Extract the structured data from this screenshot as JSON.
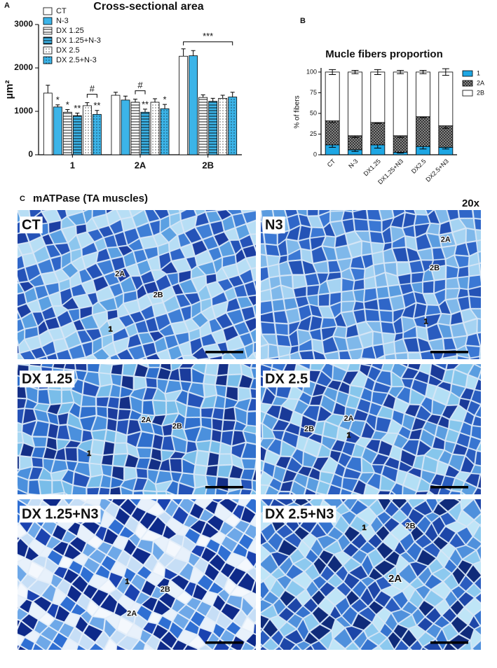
{
  "chart_data": [
    {
      "type": "bar",
      "panel_label": "A",
      "title": "Cross-sectional area",
      "ylabel": "µm²",
      "categories": [
        "1",
        "2A",
        "2B"
      ],
      "series": [
        {
          "name": "CT",
          "color": "#ffffff",
          "pattern": "none",
          "values": [
            1420,
            1370,
            2270
          ],
          "errors": [
            180,
            70,
            170
          ]
        },
        {
          "name": "N-3",
          "color": "#3cb4e8",
          "pattern": "none",
          "values": [
            1100,
            1260,
            2280
          ],
          "errors": [
            50,
            90,
            120
          ]
        },
        {
          "name": "DX 1.25",
          "color": "#ffffff",
          "pattern": "lines",
          "values": [
            980,
            1210,
            1320
          ],
          "errors": [
            60,
            70,
            60
          ]
        },
        {
          "name": "DX 1.25+N-3",
          "color": "#3cb4e8",
          "pattern": "lines",
          "values": [
            900,
            980,
            1230
          ],
          "errors": [
            60,
            70,
            70
          ]
        },
        {
          "name": "DX 2.5",
          "color": "#ffffff",
          "pattern": "dots",
          "values": [
            1130,
            1210,
            1300
          ],
          "errors": [
            70,
            80,
            70
          ]
        },
        {
          "name": "DX 2.5+N-3",
          "color": "#3cb4e8",
          "pattern": "dots",
          "values": [
            930,
            1060,
            1330
          ],
          "errors": [
            90,
            100,
            110
          ]
        }
      ],
      "ylim": [
        0,
        3000
      ],
      "yticks": [
        0,
        1000,
        2000,
        3000
      ],
      "legend": "top-left",
      "annotations": [
        {
          "text": "*",
          "category": "1",
          "series": [
            "N-3"
          ]
        },
        {
          "text": "*",
          "category": "1",
          "series": [
            "DX 1.25"
          ]
        },
        {
          "text": "**",
          "category": "1",
          "series": [
            "DX 1.25+N-3"
          ]
        },
        {
          "text": "#",
          "category": "1",
          "series": [
            "DX 2.5",
            "DX 2.5+N-3"
          ]
        },
        {
          "text": "**",
          "category": "1",
          "series": [
            "DX 2.5+N-3"
          ]
        },
        {
          "text": "#",
          "category": "2A",
          "series": [
            "DX 1.25",
            "DX 1.25+N-3"
          ]
        },
        {
          "text": "**",
          "category": "2A",
          "series": [
            "DX 1.25+N-3"
          ]
        },
        {
          "text": "*",
          "category": "2A",
          "series": [
            "DX 2.5+N-3"
          ]
        },
        {
          "text": "***",
          "category": "2B",
          "series": [
            "CT",
            "N-3",
            "DX 1.25",
            "DX 1.25+N-3",
            "DX 2.5",
            "DX 2.5+N-3"
          ]
        }
      ]
    },
    {
      "type": "stacked_bar",
      "panel_label": "B",
      "title": "Mucle fibers proportion",
      "ylabel": "% of fibers",
      "categories": [
        "CT",
        "N-3",
        "DX1.25",
        "DX1.25+N3",
        "DX2.5",
        "DX2.5+N3"
      ],
      "series": [
        {
          "name": "1",
          "color": "#1ea7e4",
          "pattern": "none",
          "values": [
            12,
            6,
            12,
            3,
            10,
            9
          ],
          "errors": [
            3,
            2,
            4,
            1,
            3,
            2
          ]
        },
        {
          "name": "2A",
          "color": "#9a9a9a",
          "pattern": "crosshatch",
          "values": [
            29,
            17,
            27,
            20,
            36,
            26
          ],
          "errors": [
            2,
            2,
            1,
            2,
            1,
            3
          ]
        },
        {
          "name": "2B",
          "color": "#ffffff",
          "pattern": "none",
          "values": [
            59,
            77,
            61,
            77,
            54,
            65
          ],
          "errors": [
            3,
            2,
            3,
            2,
            2,
            4
          ]
        }
      ],
      "ylim": [
        0,
        105
      ],
      "yticks": [
        0,
        25,
        50,
        75,
        100
      ],
      "legend": "right"
    }
  ],
  "micrographs": {
    "panel_label": "C",
    "title": "mATPase (TA muscles)",
    "magnification": "20x",
    "panels": [
      {
        "label": "CT",
        "fibers": [
          "2A",
          "2B",
          "1"
        ]
      },
      {
        "label": "N3",
        "fibers": [
          "2A",
          "2B",
          "1"
        ]
      },
      {
        "label": "DX 1.25",
        "fibers": [
          "2A",
          "2B",
          "1"
        ]
      },
      {
        "label": "DX 2.5",
        "fibers": [
          "2A",
          "2B",
          "1"
        ]
      },
      {
        "label": "DX 1.25+N3",
        "fibers": [
          "2A",
          "2B",
          "1"
        ]
      },
      {
        "label": "DX 2.5+N3",
        "fibers": [
          "2A",
          "2B",
          "1"
        ]
      }
    ]
  }
}
